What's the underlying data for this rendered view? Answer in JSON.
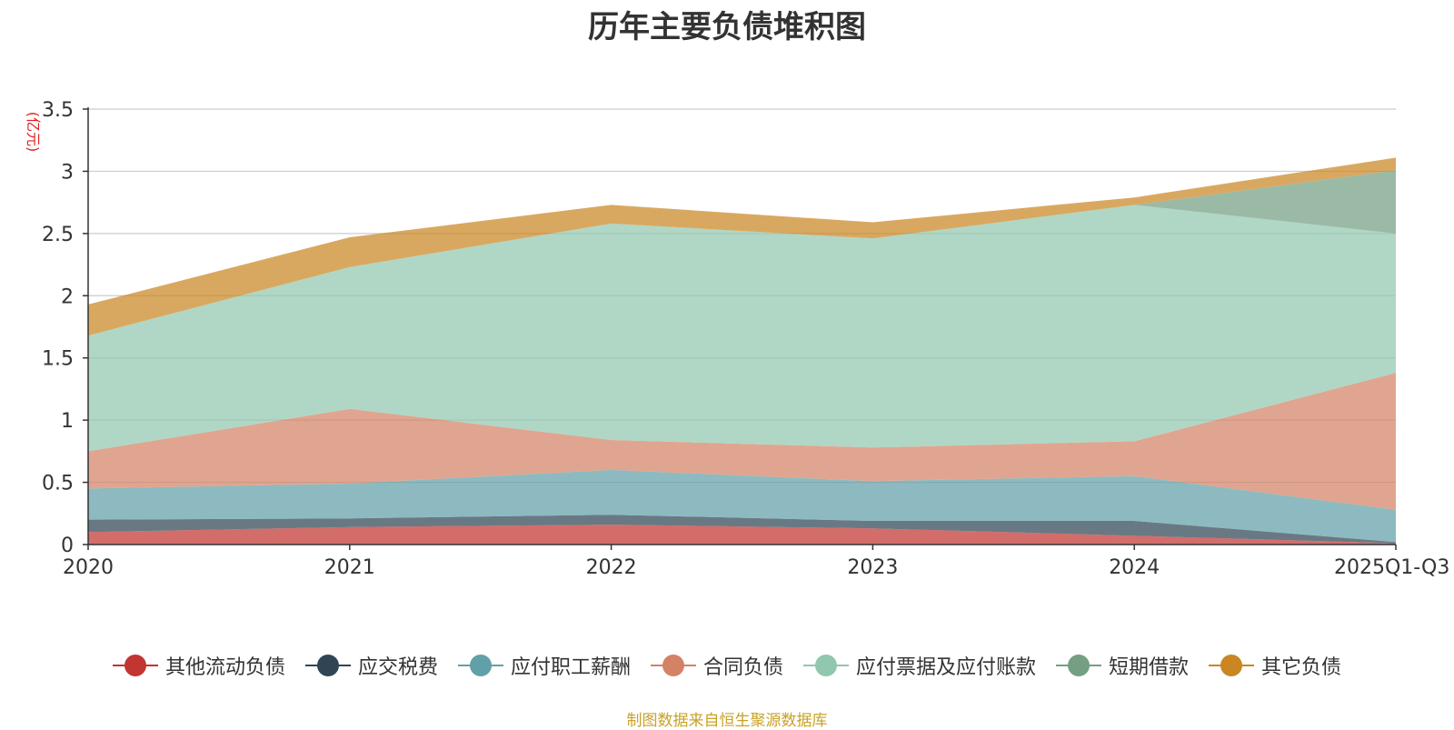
{
  "chart_data": {
    "type": "area",
    "stacked": true,
    "title": "历年主要负债堆积图",
    "ylabel": "(亿元)",
    "xlabel": "",
    "ylim": [
      0,
      3.5
    ],
    "yticks": [
      "0",
      "0.5",
      "1",
      "1.5",
      "2",
      "2.5",
      "3",
      "3.5"
    ],
    "ytick_values": [
      0,
      0.5,
      1,
      1.5,
      2,
      2.5,
      3,
      3.5
    ],
    "categories": [
      "2020",
      "2021",
      "2022",
      "2023",
      "2024",
      "2025Q1-Q3"
    ],
    "series": [
      {
        "name": "其他流动负债",
        "color": "#c23531",
        "values": [
          0.1,
          0.14,
          0.16,
          0.13,
          0.07,
          0.01
        ]
      },
      {
        "name": "应交税费",
        "color": "#2f4554",
        "values": [
          0.1,
          0.07,
          0.08,
          0.06,
          0.12,
          0.01
        ]
      },
      {
        "name": "应付职工薪酬",
        "color": "#61a0a8",
        "values": [
          0.25,
          0.28,
          0.36,
          0.32,
          0.36,
          0.26
        ]
      },
      {
        "name": "合同负债",
        "color": "#d48265",
        "values": [
          0.3,
          0.6,
          0.24,
          0.27,
          0.28,
          1.1
        ]
      },
      {
        "name": "应付票据及应付账款",
        "color": "#91c7ae",
        "values": [
          0.93,
          1.14,
          1.74,
          1.68,
          1.9,
          1.12
        ]
      },
      {
        "name": "短期借款",
        "color": "#749f83",
        "values": [
          0,
          0,
          0,
          0,
          0,
          0.51
        ]
      },
      {
        "name": "其它负债",
        "color": "#ca8622",
        "values": [
          0.25,
          0.24,
          0.15,
          0.13,
          0.06,
          0.1
        ]
      }
    ],
    "legend_position": "bottom"
  },
  "source_note": "制图数据来自恒生聚源数据库"
}
